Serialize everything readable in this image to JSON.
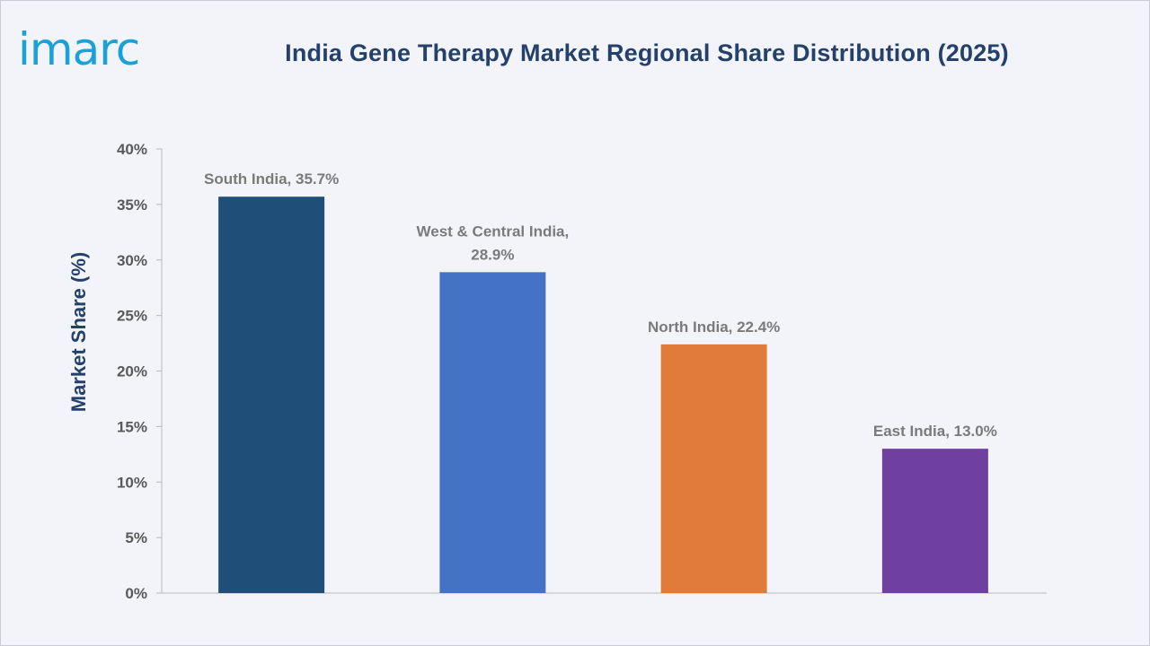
{
  "brand": {
    "logo_text": "imarc",
    "logo_color": "#1aa1d8"
  },
  "chart_data": {
    "type": "bar",
    "title": "India Gene Therapy Market Regional Share Distribution (2025)",
    "ylabel": "Market Share (%)",
    "xlabel": "",
    "ylim": [
      0,
      40
    ],
    "yticks": [
      0,
      5,
      10,
      15,
      20,
      25,
      30,
      35,
      40
    ],
    "ytick_labels": [
      "0%",
      "5%",
      "10%",
      "15%",
      "20%",
      "25%",
      "30%",
      "35%",
      "40%"
    ],
    "grid": false,
    "legend": "none",
    "categories": [
      "South India",
      "West & Central India",
      "North India",
      "East India"
    ],
    "values": [
      35.7,
      28.9,
      22.4,
      13.0
    ],
    "data_labels": [
      [
        "South India, 35.7%"
      ],
      [
        "West & Central India,",
        "28.9%"
      ],
      [
        "North India, 22.4%"
      ],
      [
        "East India, 13.0%"
      ]
    ],
    "colors": [
      "#1f4e79",
      "#4472c4",
      "#e07b39",
      "#7040a0"
    ]
  }
}
